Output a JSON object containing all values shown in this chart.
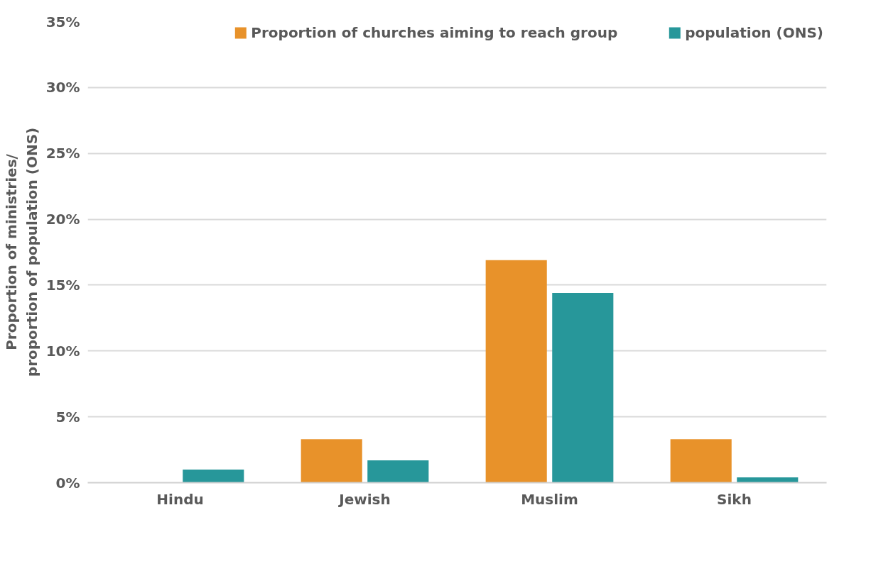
{
  "chart_data": {
    "type": "bar",
    "ylabel": "Proportion of ministries/\nproportion of population (ONS)",
    "categories": [
      "Hindu",
      "Jewish",
      "Muslim",
      "Sikh"
    ],
    "series": [
      {
        "name": "Proportion of churches aiming to reach group",
        "color": "#e8922a",
        "values": [
          0,
          3.3,
          16.9,
          3.3
        ]
      },
      {
        "name": "population (ONS)",
        "color": "#27979a",
        "values": [
          1.0,
          1.7,
          14.4,
          0.4
        ]
      }
    ],
    "ylim": [
      0,
      35
    ],
    "yticks": [
      {
        "value": 0,
        "label": "0%"
      },
      {
        "value": 5,
        "label": "5%"
      },
      {
        "value": 10,
        "label": "10%"
      },
      {
        "value": 15,
        "label": "15%"
      },
      {
        "value": 20,
        "label": "20%"
      },
      {
        "value": 25,
        "label": "25%"
      },
      {
        "value": 30,
        "label": "30%"
      },
      {
        "value": 35,
        "label": "35%"
      }
    ],
    "grid": "y",
    "legend": "top right"
  }
}
